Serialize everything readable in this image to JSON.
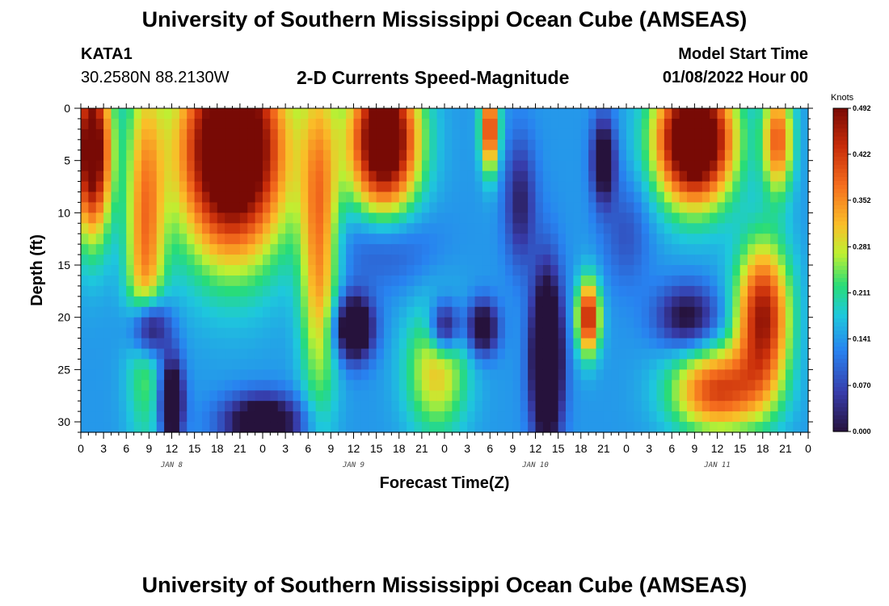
{
  "header": {
    "title": "University of Southern Mississippi Ocean Cube (AMSEAS)",
    "station": "KATA1",
    "coords": "30.2580N  88.2130W",
    "subtitle": "2-D Currents Speed-Magnitude",
    "start_label": "Model Start Time",
    "start_value": "01/08/2022 Hour 00"
  },
  "footer": {
    "title": "University of Southern Mississippi Ocean Cube (AMSEAS)"
  },
  "chart_data": {
    "type": "heatmap",
    "xlabel": "Forecast Time(Z)",
    "ylabel": "Depth (ft)",
    "x_tick_labels": [
      "0",
      "3",
      "6",
      "9",
      "12",
      "15",
      "18",
      "21",
      "0",
      "3",
      "6",
      "9",
      "12",
      "15",
      "18",
      "21",
      "0",
      "3",
      "6",
      "9",
      "12",
      "15",
      "18",
      "21",
      "0",
      "3",
      "6",
      "9",
      "12",
      "15",
      "18",
      "21",
      "0"
    ],
    "date_labels": [
      {
        "label": "JAN 8",
        "hour": 12
      },
      {
        "label": "JAN 9",
        "hour": 36
      },
      {
        "label": "JAN 10",
        "hour": 60
      },
      {
        "label": "JAN 11",
        "hour": 84
      }
    ],
    "xlim": [
      0,
      96
    ],
    "ylim": [
      0,
      31
    ],
    "y_ticks": [
      0,
      5,
      10,
      15,
      20,
      25,
      30
    ],
    "colorbar": {
      "unit": "Knots",
      "ticks": [
        "0.492",
        "0.422",
        "0.352",
        "0.281",
        "0.211",
        "0.141",
        "0.070",
        "0.000"
      ],
      "range": [
        0,
        0.492
      ]
    },
    "features": [
      {
        "hour": 1.5,
        "depth": 4,
        "speed": 0.42,
        "sh": 2.5,
        "sd": 8
      },
      {
        "hour": 20,
        "depth": 4,
        "speed": 0.5,
        "sh": 7,
        "sd": 10
      },
      {
        "hour": 40,
        "depth": 3,
        "speed": 0.45,
        "sh": 4.5,
        "sd": 7
      },
      {
        "hour": 54,
        "depth": 2,
        "speed": 0.3,
        "sh": 1.2,
        "sd": 4
      },
      {
        "hour": 81,
        "depth": 3,
        "speed": 0.5,
        "sh": 5,
        "sd": 6
      },
      {
        "hour": 92,
        "depth": 3,
        "speed": 0.25,
        "sh": 2,
        "sd": 5
      },
      {
        "hour": 90,
        "depth": 20,
        "speed": 0.33,
        "sh": 3.5,
        "sd": 7
      },
      {
        "hour": 84,
        "depth": 27,
        "speed": 0.27,
        "sh": 6,
        "sd": 4
      },
      {
        "hour": 67,
        "depth": 20,
        "speed": 0.32,
        "sh": 1.5,
        "sd": 3.5
      },
      {
        "hour": 8.5,
        "depth": 12,
        "speed": 0.22,
        "sh": 2.5,
        "sd": 16
      },
      {
        "hour": 31.5,
        "depth": 12,
        "speed": 0.22,
        "sh": 2.5,
        "sd": 16
      },
      {
        "hour": 47,
        "depth": 25,
        "speed": 0.17,
        "sh": 4,
        "sd": 6
      },
      {
        "hour": 9,
        "depth": 21,
        "speed": -0.25,
        "sh": 2.5,
        "sd": 3
      },
      {
        "hour": 12,
        "depth": 28,
        "speed": -0.25,
        "sh": 1.5,
        "sd": 4
      },
      {
        "hour": 24,
        "depth": 30,
        "speed": -0.22,
        "sh": 5,
        "sd": 2.5
      },
      {
        "hour": 36,
        "depth": 21,
        "speed": -0.26,
        "sh": 2.5,
        "sd": 3
      },
      {
        "hour": 48,
        "depth": 21,
        "speed": -0.2,
        "sh": 2,
        "sd": 2.5
      },
      {
        "hour": 53,
        "depth": 21,
        "speed": -0.2,
        "sh": 2,
        "sd": 2.5
      },
      {
        "hour": 61.5,
        "depth": 24,
        "speed": -0.32,
        "sh": 2,
        "sd": 8
      },
      {
        "hour": 69,
        "depth": 5,
        "speed": -0.2,
        "sh": 1.5,
        "sd": 4
      },
      {
        "hour": 80,
        "depth": 20,
        "speed": -0.15,
        "sh": 4,
        "sd": 3
      },
      {
        "hour": 40,
        "depth": 13,
        "speed": -0.08,
        "sh": 6,
        "sd": 4
      },
      {
        "hour": 58,
        "depth": 9,
        "speed": -0.12,
        "sh": 2,
        "sd": 6
      },
      {
        "hour": 72,
        "depth": 12,
        "speed": -0.06,
        "sh": 3,
        "sd": 5
      }
    ],
    "base_speed": 0.14
  }
}
